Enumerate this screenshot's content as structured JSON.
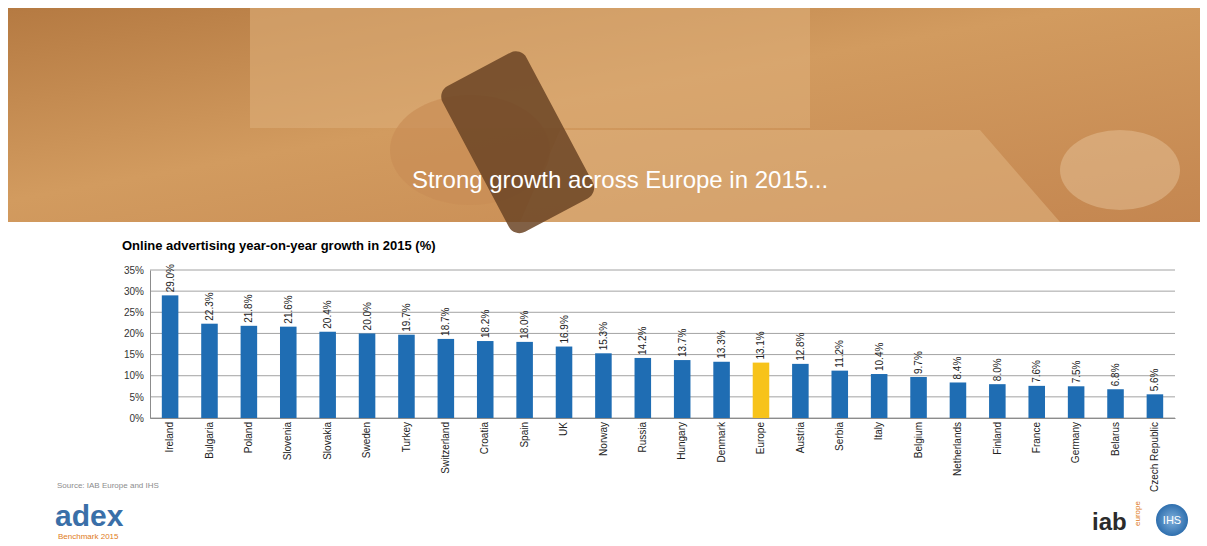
{
  "chart_data": {
    "type": "bar",
    "title": "Online advertising year-on-year growth in 2015 (%)",
    "categories": [
      "Ireland",
      "Bulgaria",
      "Poland",
      "Slovenia",
      "Slovakia",
      "Sweden",
      "Turkey",
      "Switzerland",
      "Croatia",
      "Spain",
      "UK",
      "Norway",
      "Russia",
      "Hungary",
      "Denmark",
      "Europe",
      "Austria",
      "Serbia",
      "Italy",
      "Belgium",
      "Netherlands",
      "Finland",
      "France",
      "Germany",
      "Belarus",
      "Czech Republic"
    ],
    "values": [
      29.0,
      22.3,
      21.8,
      21.6,
      20.4,
      20.0,
      19.7,
      18.7,
      18.2,
      18.0,
      16.9,
      15.3,
      14.2,
      13.7,
      13.3,
      13.1,
      12.8,
      11.2,
      10.4,
      9.7,
      8.4,
      8.0,
      7.6,
      7.5,
      6.8,
      5.6
    ],
    "value_labels": [
      "29.0%",
      "22.3%",
      "21.8%",
      "21.6%",
      "20.4%",
      "20.0%",
      "19.7%",
      "18.7%",
      "18.2%",
      "18.0%",
      "16.9%",
      "15.3%",
      "14.2%",
      "13.7%",
      "13.3%",
      "13.1%",
      "12.8%",
      "11.2%",
      "10.4%",
      "9.7%",
      "8.4%",
      "8.0%",
      "7.6%",
      "7.5%",
      "6.8%",
      "5.6%"
    ],
    "colors": [
      "#1f6db3",
      "#1f6db3",
      "#1f6db3",
      "#1f6db3",
      "#1f6db3",
      "#1f6db3",
      "#1f6db3",
      "#1f6db3",
      "#1f6db3",
      "#1f6db3",
      "#1f6db3",
      "#1f6db3",
      "#1f6db3",
      "#1f6db3",
      "#1f6db3",
      "#f7c31a",
      "#1f6db3",
      "#1f6db3",
      "#1f6db3",
      "#1f6db3",
      "#1f6db3",
      "#1f6db3",
      "#1f6db3",
      "#1f6db3",
      "#1f6db3",
      "#1f6db3"
    ],
    "ylim": [
      0,
      35
    ],
    "yticks": [
      {
        "value": 0,
        "label": "0%"
      },
      {
        "value": 5,
        "label": "5%"
      },
      {
        "value": 10,
        "label": "10%"
      },
      {
        "value": 15,
        "label": "15%"
      },
      {
        "value": 20,
        "label": "20%"
      },
      {
        "value": 25,
        "label": "25%"
      },
      {
        "value": 30,
        "label": "30%"
      },
      {
        "value": 35,
        "label": "35%"
      }
    ],
    "grid": true,
    "data_labels": true
  },
  "slide": {
    "heading": "Strong growth across Europe in 2015...",
    "source": "Source: IAB Europe and IHS",
    "logos": [
      "adex",
      "Benchmark 2015",
      "iab",
      "europe",
      "IHS"
    ]
  }
}
